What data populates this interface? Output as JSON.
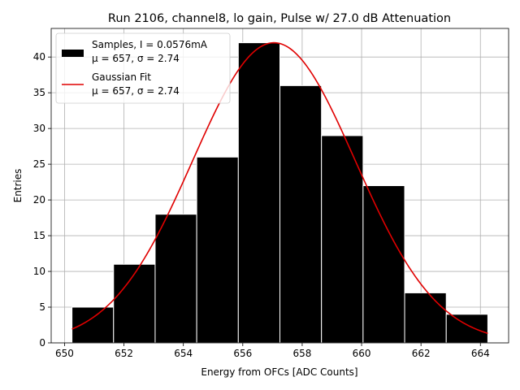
{
  "chart_data": {
    "type": "bar",
    "title": "Run 2106, channel8, lo gain, Pulse w/ 27.0 dB Attenuation",
    "xlabel": "Energy from OFCs [ADC Counts]",
    "ylabel": "Entries",
    "xlim": [
      649.55,
      664.95
    ],
    "ylim": [
      0,
      44
    ],
    "grid": true,
    "legend_position": "top-left",
    "bin_edges": [
      650.25,
      651.65,
      653.05,
      654.45,
      655.85,
      657.25,
      658.65,
      660.05,
      661.45,
      662.85,
      664.25
    ],
    "values": [
      5,
      11,
      18,
      26,
      42,
      36,
      29,
      22,
      7,
      4
    ],
    "bar_color": "#000000",
    "fit": {
      "name": "Gaussian Fit",
      "mu": 657.05,
      "sigma": 2.74,
      "amplitude": 42,
      "x_range": [
        650.25,
        664.25
      ],
      "color": "#e00000"
    },
    "xticks": [
      "650",
      "652",
      "654",
      "656",
      "658",
      "660",
      "662",
      "664"
    ],
    "yticks": [
      "0",
      "5",
      "10",
      "15",
      "20",
      "25",
      "30",
      "35",
      "40"
    ],
    "legend": [
      {
        "line1": "Samples, I = 0.0576mA",
        "line2": "μ = 657, σ = 2.74"
      },
      {
        "line1": "Gaussian Fit",
        "line2": "μ = 657, σ = 2.74"
      }
    ]
  }
}
